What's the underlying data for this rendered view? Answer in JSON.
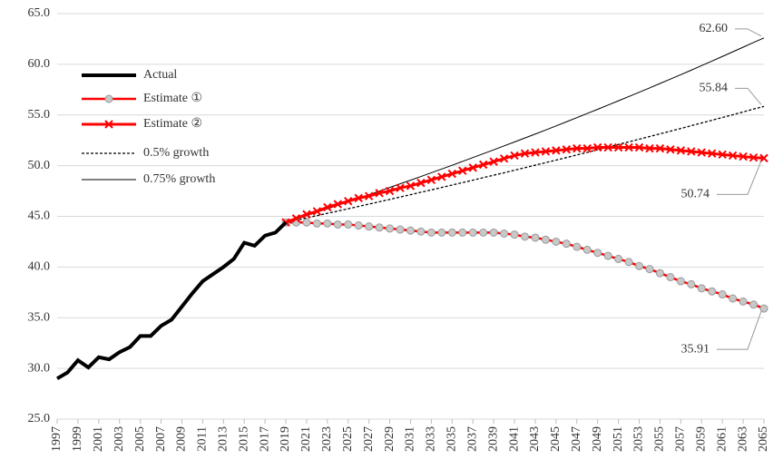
{
  "chart_data": {
    "type": "line",
    "xlim": [
      1997,
      2065
    ],
    "xticks": [
      1997,
      1999,
      2001,
      2003,
      2005,
      2007,
      2009,
      2011,
      2013,
      2015,
      2017,
      2019,
      2021,
      2023,
      2025,
      2027,
      2029,
      2031,
      2033,
      2035,
      2037,
      2039,
      2041,
      2043,
      2045,
      2047,
      2049,
      2051,
      2053,
      2055,
      2057,
      2059,
      2061,
      2063,
      2065
    ],
    "ylim": [
      25,
      65
    ],
    "yticks": [
      {
        "value": 25,
        "label": "25.0"
      },
      {
        "value": 30,
        "label": "30.0"
      },
      {
        "value": 35,
        "label": "35.0"
      },
      {
        "value": 40,
        "label": "40.0"
      },
      {
        "value": 45,
        "label": "45.0"
      },
      {
        "value": 50,
        "label": "50.0"
      },
      {
        "value": 55,
        "label": "55.0"
      },
      {
        "value": 60,
        "label": "60.0"
      },
      {
        "value": 65,
        "label": "65.0"
      }
    ],
    "grid": true,
    "legend": "upper left",
    "series": [
      {
        "name": "Actual",
        "color": "#000000",
        "linestyle": "solid",
        "x": [
          1997,
          1998,
          1999,
          2000,
          2001,
          2002,
          2003,
          2004,
          2005,
          2006,
          2007,
          2008,
          2009,
          2010,
          2011,
          2012,
          2013,
          2014,
          2015,
          2016,
          2017,
          2018,
          2019
        ],
        "values": [
          29.0,
          29.6,
          30.8,
          30.1,
          31.1,
          30.9,
          31.6,
          32.1,
          33.2,
          33.2,
          34.2,
          34.8,
          36.1,
          37.4,
          38.6,
          39.3,
          40.0,
          40.8,
          42.4,
          42.1,
          43.1,
          43.4,
          44.4
        ]
      },
      {
        "name": "Estimate ①",
        "color": "#ff0000",
        "linestyle": "solid",
        "marker": "circle",
        "x": [
          2019,
          2020,
          2021,
          2022,
          2023,
          2024,
          2025,
          2026,
          2027,
          2028,
          2029,
          2030,
          2031,
          2032,
          2033,
          2034,
          2035,
          2036,
          2037,
          2038,
          2039,
          2040,
          2041,
          2042,
          2043,
          2044,
          2045,
          2046,
          2047,
          2048,
          2049,
          2050,
          2051,
          2052,
          2053,
          2054,
          2055,
          2056,
          2057,
          2058,
          2059,
          2060,
          2061,
          2062,
          2063,
          2064,
          2065
        ],
        "values": [
          44.4,
          44.4,
          44.4,
          44.3,
          44.3,
          44.2,
          44.2,
          44.1,
          44.0,
          43.9,
          43.8,
          43.7,
          43.6,
          43.5,
          43.4,
          43.4,
          43.4,
          43.4,
          43.4,
          43.4,
          43.4,
          43.3,
          43.2,
          43.0,
          42.9,
          42.7,
          42.5,
          42.3,
          42.0,
          41.7,
          41.4,
          41.1,
          40.8,
          40.5,
          40.1,
          39.8,
          39.4,
          39.0,
          38.6,
          38.3,
          37.9,
          37.6,
          37.3,
          36.9,
          36.6,
          36.3,
          35.91
        ],
        "value_labels": [
          null,
          null,
          null,
          null,
          null,
          null,
          null,
          null,
          null,
          null,
          null,
          null,
          null,
          null,
          null,
          null,
          null,
          null,
          null,
          null,
          null,
          null,
          null,
          null,
          null,
          null,
          null,
          null,
          null,
          null,
          null,
          null,
          null,
          null,
          null,
          null,
          null,
          null,
          null,
          null,
          null,
          null,
          null,
          null,
          null,
          null,
          "35.91"
        ]
      },
      {
        "name": "Estimate ②",
        "color": "#ff0000",
        "linestyle": "solid",
        "marker": "x",
        "x": [
          2019,
          2020,
          2021,
          2022,
          2023,
          2024,
          2025,
          2026,
          2027,
          2028,
          2029,
          2030,
          2031,
          2032,
          2033,
          2034,
          2035,
          2036,
          2037,
          2038,
          2039,
          2040,
          2041,
          2042,
          2043,
          2044,
          2045,
          2046,
          2047,
          2048,
          2049,
          2050,
          2051,
          2052,
          2053,
          2054,
          2055,
          2056,
          2057,
          2058,
          2059,
          2060,
          2061,
          2062,
          2063,
          2064,
          2065
        ],
        "values": [
          44.4,
          44.8,
          45.2,
          45.5,
          45.9,
          46.2,
          46.5,
          46.8,
          47.0,
          47.3,
          47.5,
          47.8,
          48.0,
          48.3,
          48.6,
          48.9,
          49.2,
          49.5,
          49.8,
          50.1,
          50.4,
          50.7,
          51.0,
          51.2,
          51.3,
          51.4,
          51.5,
          51.6,
          51.7,
          51.7,
          51.8,
          51.8,
          51.8,
          51.8,
          51.8,
          51.7,
          51.7,
          51.6,
          51.5,
          51.4,
          51.3,
          51.2,
          51.1,
          51.0,
          50.9,
          50.8,
          50.74
        ],
        "value_labels": [
          null,
          null,
          null,
          null,
          null,
          null,
          null,
          null,
          null,
          null,
          null,
          null,
          null,
          null,
          null,
          null,
          null,
          null,
          null,
          null,
          null,
          null,
          null,
          null,
          null,
          null,
          null,
          null,
          null,
          null,
          null,
          null,
          null,
          null,
          null,
          null,
          null,
          null,
          null,
          null,
          null,
          null,
          null,
          null,
          null,
          null,
          "50.74"
        ]
      },
      {
        "name": "0.5% growth",
        "color": "#000000",
        "linestyle": "dashed",
        "x": [
          2019,
          2020,
          2021,
          2022,
          2023,
          2024,
          2025,
          2026,
          2027,
          2028,
          2029,
          2030,
          2031,
          2032,
          2033,
          2034,
          2035,
          2036,
          2037,
          2038,
          2039,
          2040,
          2041,
          2042,
          2043,
          2044,
          2045,
          2046,
          2047,
          2048,
          2049,
          2050,
          2051,
          2052,
          2053,
          2054,
          2055,
          2056,
          2057,
          2058,
          2059,
          2060,
          2061,
          2062,
          2063,
          2064,
          2065
        ],
        "values": [
          44.4,
          44.62,
          44.85,
          45.07,
          45.3,
          45.52,
          45.75,
          45.98,
          46.21,
          46.44,
          46.67,
          46.91,
          47.14,
          47.38,
          47.61,
          47.85,
          48.09,
          48.33,
          48.57,
          48.82,
          49.06,
          49.3,
          49.55,
          49.8,
          50.05,
          50.3,
          50.55,
          50.8,
          51.06,
          51.31,
          51.57,
          51.83,
          52.09,
          52.35,
          52.61,
          52.87,
          53.14,
          53.4,
          53.67,
          53.94,
          54.21,
          54.48,
          54.75,
          55.02,
          55.3,
          55.58,
          55.84
        ],
        "value_labels": [
          null,
          null,
          null,
          null,
          null,
          null,
          null,
          null,
          null,
          null,
          null,
          null,
          null,
          null,
          null,
          null,
          null,
          null,
          null,
          null,
          null,
          null,
          null,
          null,
          null,
          null,
          null,
          null,
          null,
          null,
          null,
          null,
          null,
          null,
          null,
          null,
          null,
          null,
          null,
          null,
          null,
          null,
          null,
          null,
          null,
          null,
          "55.84"
        ]
      },
      {
        "name": "0.75% growth",
        "color": "#000000",
        "linestyle": "solid",
        "x": [
          2019,
          2020,
          2021,
          2022,
          2023,
          2024,
          2025,
          2026,
          2027,
          2028,
          2029,
          2030,
          2031,
          2032,
          2033,
          2034,
          2035,
          2036,
          2037,
          2038,
          2039,
          2040,
          2041,
          2042,
          2043,
          2044,
          2045,
          2046,
          2047,
          2048,
          2049,
          2050,
          2051,
          2052,
          2053,
          2054,
          2055,
          2056,
          2057,
          2058,
          2059,
          2060,
          2061,
          2062,
          2063,
          2064,
          2065
        ],
        "values": [
          44.4,
          44.73,
          45.07,
          45.41,
          45.75,
          46.09,
          46.44,
          46.79,
          47.14,
          47.49,
          47.85,
          48.21,
          48.57,
          48.93,
          49.3,
          49.67,
          50.04,
          50.42,
          50.8,
          51.18,
          51.56,
          51.95,
          52.34,
          52.73,
          53.12,
          53.52,
          53.92,
          54.33,
          54.74,
          55.15,
          55.56,
          55.98,
          56.4,
          56.82,
          57.24,
          57.67,
          58.11,
          58.54,
          58.98,
          59.42,
          59.87,
          60.32,
          60.77,
          61.23,
          61.69,
          62.15,
          62.6
        ],
        "value_labels": [
          null,
          null,
          null,
          null,
          null,
          null,
          null,
          null,
          null,
          null,
          null,
          null,
          null,
          null,
          null,
          null,
          null,
          null,
          null,
          null,
          null,
          null,
          null,
          null,
          null,
          null,
          null,
          null,
          null,
          null,
          null,
          null,
          null,
          null,
          null,
          null,
          null,
          null,
          null,
          null,
          null,
          null,
          null,
          null,
          null,
          null,
          "62.60"
        ]
      }
    ]
  }
}
